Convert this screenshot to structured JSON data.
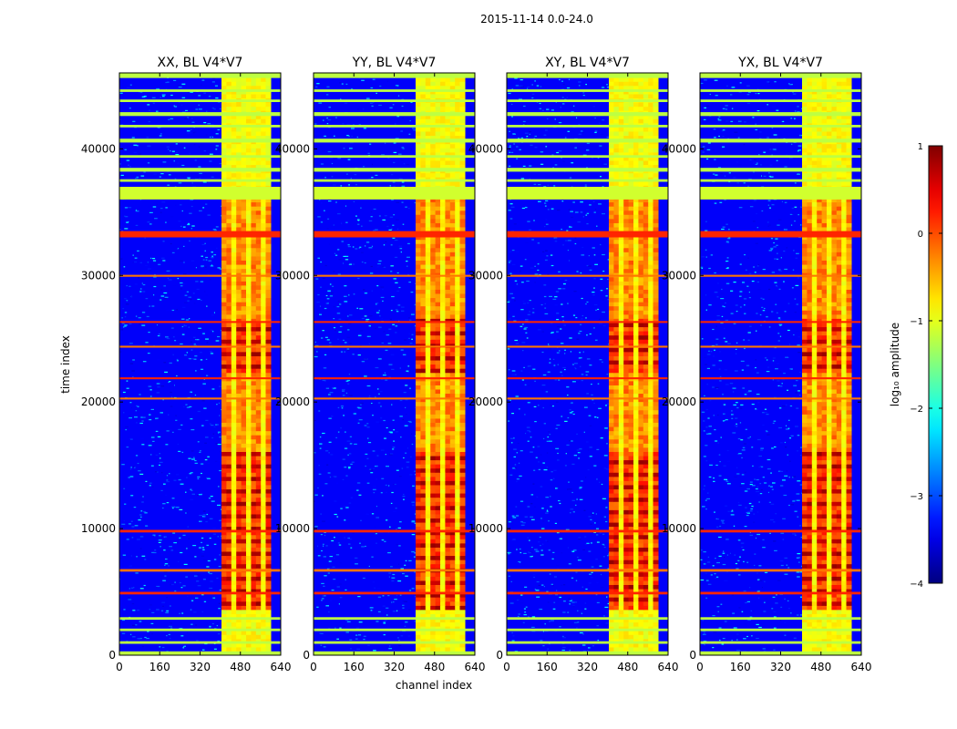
{
  "figure": {
    "suptitle": "2015-11-14 0.0-24.0"
  },
  "chart_data": {
    "type": "heatmap",
    "xlabel": "channel index",
    "ylabel": "time index",
    "xlim": [
      0,
      640
    ],
    "ylim": [
      0,
      46000
    ],
    "x_ticks": [
      0,
      160,
      320,
      480,
      640
    ],
    "y_ticks": [
      0,
      10000,
      20000,
      30000,
      40000
    ],
    "panels": [
      {
        "title": "XX, BL V4*V7",
        "pol": "XX"
      },
      {
        "title": "YY, BL V4*V7",
        "pol": "YY"
      },
      {
        "title": "XY, BL V4*V7",
        "pol": "XY"
      },
      {
        "title": "YX, BL V4*V7",
        "pol": "YX"
      }
    ],
    "colorbar": {
      "label": "log₁₀ amplitude",
      "vmin": -4,
      "vmax": 1,
      "ticks": [
        "1",
        "0",
        "−1",
        "−2",
        "−3",
        "−4"
      ],
      "colormap": "jet"
    },
    "features": {
      "band_channels": [
        405,
        600
      ],
      "saturated_time_rows": [
        [
          36000,
          37000
        ],
        [
          33000,
          33500
        ],
        [
          29900,
          30050
        ],
        [
          26250,
          26400
        ],
        [
          24300,
          24450
        ],
        [
          21800,
          21950
        ],
        [
          20200,
          20350
        ],
        [
          9700,
          9900
        ],
        [
          6600,
          6800
        ],
        [
          4800,
          5000
        ]
      ],
      "flagged_time_rows": [
        [
          45600,
          46000
        ],
        [
          44500,
          44700
        ],
        [
          43700,
          43900
        ],
        [
          42600,
          42900
        ],
        [
          41700,
          41900
        ],
        [
          40500,
          40800
        ],
        [
          39300,
          39500
        ],
        [
          38200,
          38500
        ],
        [
          37400,
          37600
        ],
        [
          2800,
          3000
        ],
        [
          1900,
          2100
        ],
        [
          900,
          1100
        ],
        [
          0,
          300
        ]
      ]
    }
  },
  "colors": {
    "flag": "#9dff5a",
    "hot_row": "#ff7a00",
    "bg_low": "#0a1cff"
  }
}
